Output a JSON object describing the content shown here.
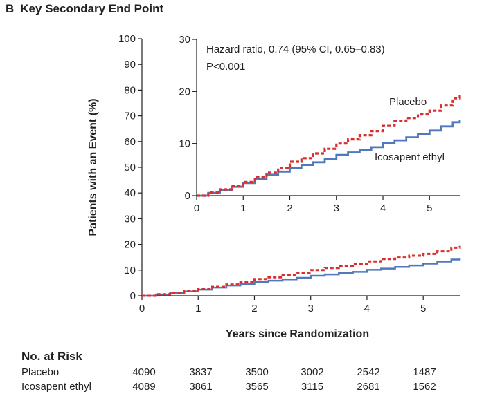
{
  "panel": {
    "letter": "B",
    "title": "Key Secondary End Point"
  },
  "chart_data": {
    "type": "line",
    "ylabel": "Patients with an Event (%)",
    "xlabel": "Years since Randomization",
    "main": {
      "xlim": [
        0,
        5.65
      ],
      "ylim": [
        0,
        100
      ],
      "xticks": [
        0,
        1,
        2,
        3,
        4,
        5
      ],
      "yticks": [
        0,
        10,
        20,
        30,
        40,
        50,
        60,
        70,
        80,
        90,
        100
      ]
    },
    "inset": {
      "xlim": [
        0,
        5.65
      ],
      "ylim": [
        0,
        30
      ],
      "xticks": [
        0,
        1,
        2,
        3,
        4,
        5
      ],
      "yticks": [
        0,
        10,
        20,
        30
      ],
      "annotation_line1": "Hazard ratio, 0.74 (95% CI, 0.65–0.83)",
      "annotation_line2": "P<0.001"
    },
    "series": [
      {
        "name": "Placebo",
        "color": "#d8302f",
        "style": "dashed",
        "x": [
          0,
          0.25,
          0.5,
          0.75,
          1,
          1.25,
          1.5,
          1.75,
          2,
          2.25,
          2.5,
          2.75,
          3,
          3.25,
          3.5,
          3.75,
          4,
          4.25,
          4.5,
          4.75,
          5,
          5.25,
          5.5,
          5.65
        ],
        "y": [
          0,
          0.6,
          1.2,
          1.8,
          2.6,
          3.5,
          4.4,
          5.3,
          6.5,
          7.2,
          8.1,
          9.0,
          10.0,
          10.8,
          11.6,
          12.4,
          13.4,
          14.3,
          14.9,
          15.6,
          16.3,
          17.3,
          18.7,
          19.4
        ]
      },
      {
        "name": "Icosapent ethyl",
        "color": "#4f79bc",
        "style": "solid",
        "x": [
          0,
          0.25,
          0.5,
          0.75,
          1,
          1.25,
          1.5,
          1.75,
          2,
          2.25,
          2.5,
          2.75,
          3,
          3.25,
          3.5,
          3.75,
          4,
          4.25,
          4.5,
          4.75,
          5,
          5.25,
          5.5,
          5.65
        ],
        "y": [
          0,
          0.5,
          1.1,
          1.7,
          2.4,
          3.2,
          4.0,
          4.6,
          5.3,
          5.9,
          6.4,
          7.0,
          7.8,
          8.3,
          8.8,
          9.3,
          10.1,
          10.6,
          11.2,
          11.8,
          12.5,
          13.3,
          14.1,
          14.6
        ]
      }
    ]
  },
  "risk_table": {
    "title": "No. at Risk",
    "rows": [
      {
        "group": "Placebo",
        "counts": [
          "4090",
          "3837",
          "3500",
          "3002",
          "2542",
          "1487"
        ]
      },
      {
        "group": "Icosapent ethyl",
        "counts": [
          "4089",
          "3861",
          "3565",
          "3115",
          "2681",
          "1562"
        ]
      }
    ]
  }
}
